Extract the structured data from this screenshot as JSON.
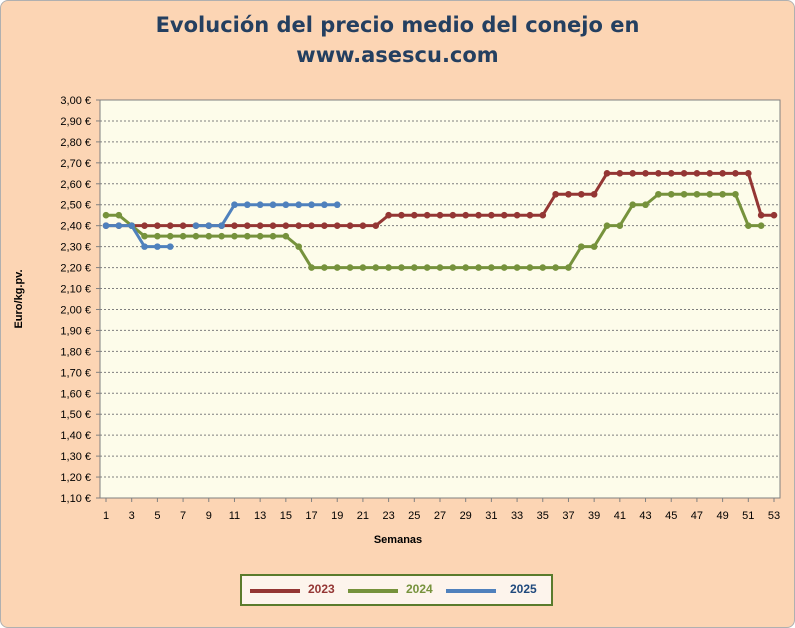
{
  "chart_data": {
    "type": "line",
    "title_line1": "Evolución del precio medio del conejo en",
    "title_line2": "www.asescu.com",
    "xlabel": "Semanas",
    "ylabel": "Euro/kg.pv.",
    "ylim": [
      1.1,
      3.0
    ],
    "ystep": 0.1,
    "xlim": [
      1,
      53
    ],
    "xticks": [
      1,
      3,
      5,
      7,
      9,
      11,
      13,
      15,
      17,
      19,
      21,
      23,
      25,
      27,
      29,
      31,
      33,
      35,
      37,
      39,
      41,
      43,
      45,
      47,
      49,
      51,
      53
    ],
    "ytick_labels": [
      "3,00 €",
      "2,90 €",
      "2,80 €",
      "2,70 €",
      "2,60 €",
      "2,50 €",
      "2,40 €",
      "2,30 €",
      "2,20 €",
      "2,10 €",
      "2,00 €",
      "1,90 €",
      "1,80 €",
      "1,70 €",
      "1,60 €",
      "1,50 €",
      "1,40 €",
      "1,30 €",
      "1,20 €",
      "1,10 €"
    ],
    "grid": true,
    "legend_position": "bottom",
    "series": [
      {
        "name": "2023",
        "color": "#943634",
        "values": [
          2.4,
          2.4,
          2.4,
          2.4,
          2.4,
          2.4,
          2.4,
          2.4,
          2.4,
          2.4,
          2.4,
          2.4,
          2.4,
          2.4,
          2.4,
          2.4,
          2.4,
          2.4,
          2.4,
          2.4,
          2.4,
          2.4,
          2.45,
          2.45,
          2.45,
          2.45,
          2.45,
          2.45,
          2.45,
          2.45,
          2.45,
          2.45,
          2.45,
          2.45,
          2.45,
          2.55,
          2.55,
          2.55,
          2.55,
          2.65,
          2.65,
          2.65,
          2.65,
          2.65,
          2.65,
          2.65,
          2.65,
          2.65,
          2.65,
          2.65,
          2.65,
          2.45,
          2.45
        ]
      },
      {
        "name": "2024",
        "color": "#76923c",
        "values": [
          2.45,
          2.45,
          2.4,
          2.35,
          2.35,
          2.35,
          2.35,
          2.35,
          2.35,
          2.35,
          2.35,
          2.35,
          2.35,
          2.35,
          2.35,
          2.3,
          2.2,
          2.2,
          2.2,
          2.2,
          2.2,
          2.2,
          2.2,
          2.2,
          2.2,
          2.2,
          2.2,
          2.2,
          2.2,
          2.2,
          2.2,
          2.2,
          2.2,
          2.2,
          2.2,
          2.2,
          2.2,
          2.3,
          2.3,
          2.4,
          2.4,
          2.5,
          2.5,
          2.55,
          2.55,
          2.55,
          2.55,
          2.55,
          2.55,
          2.55,
          2.4,
          2.4,
          null
        ]
      },
      {
        "name": "2025",
        "color": "#4f81bd",
        "values": [
          2.4,
          2.4,
          2.4,
          2.3,
          2.3,
          2.3,
          null,
          2.4,
          2.4,
          2.4,
          2.5,
          2.5,
          2.5,
          2.5,
          2.5,
          2.5,
          2.5,
          2.5,
          2.5
        ]
      }
    ],
    "connectors": [
      {
        "color": "#e8a060",
        "from": [
          3,
          2.4
        ],
        "to": [
          4,
          2.35
        ]
      },
      {
        "color": "#e8a060",
        "from": [
          7,
          2.4
        ],
        "to": [
          8,
          2.4
        ]
      }
    ]
  }
}
